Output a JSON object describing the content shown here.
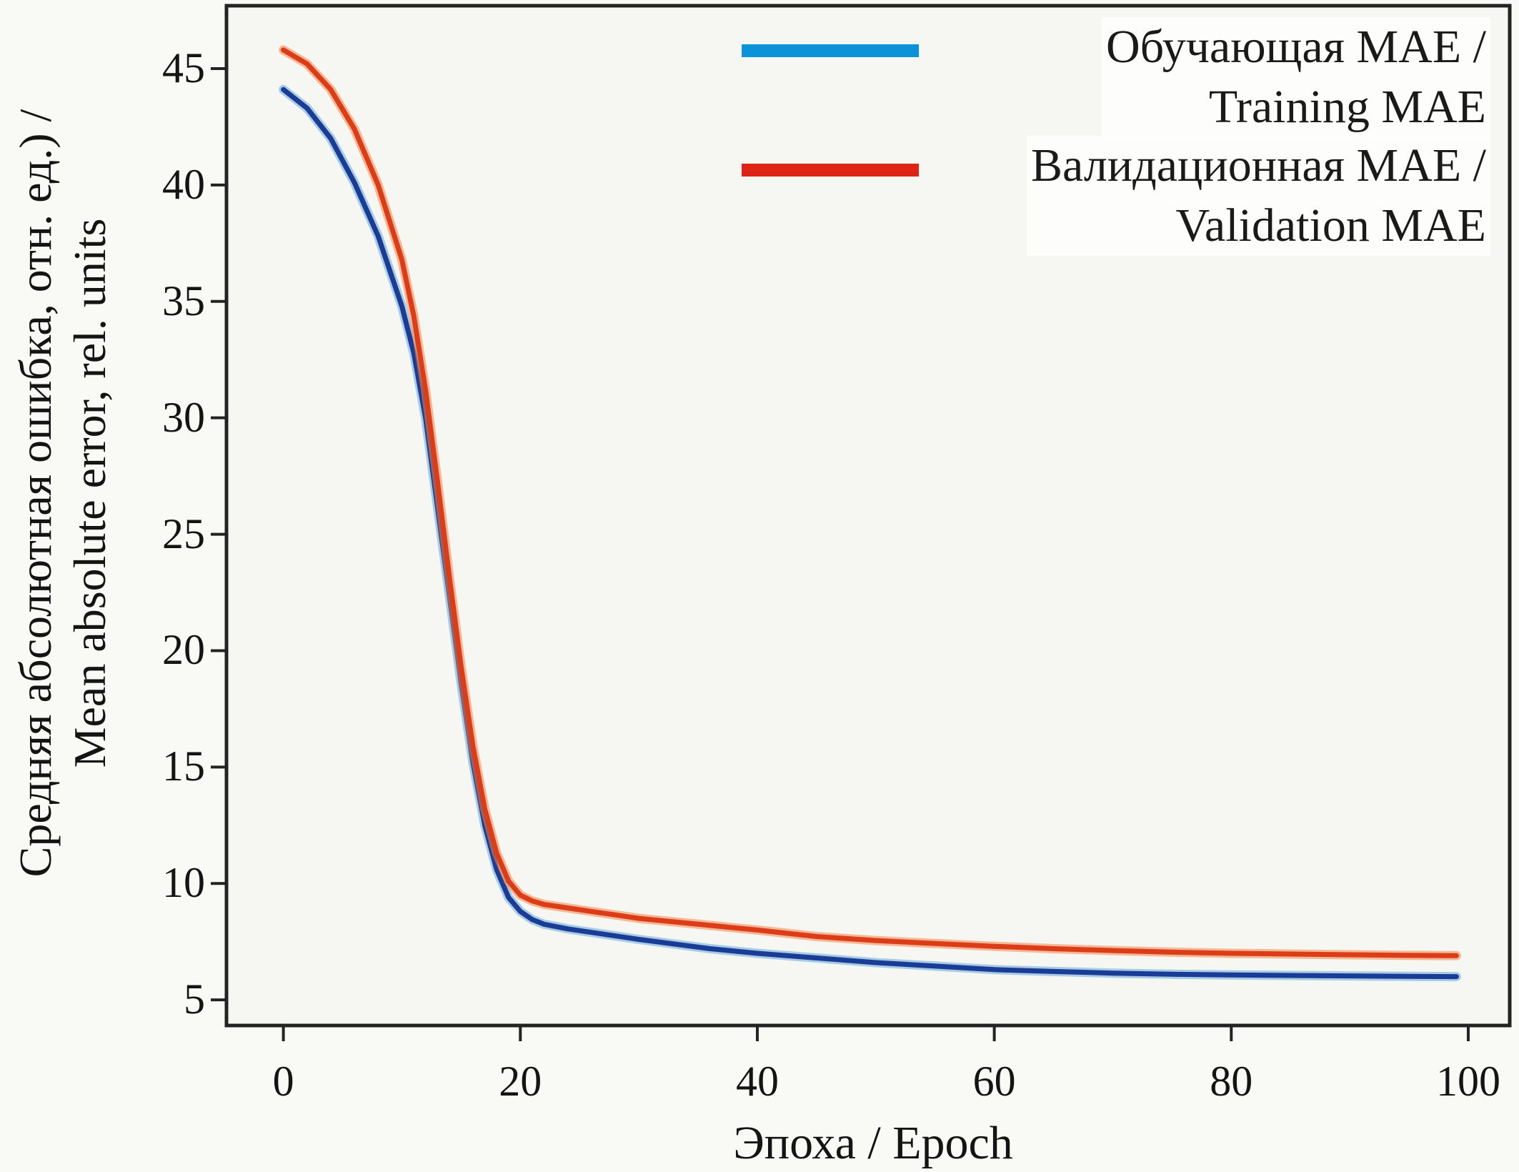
{
  "chart_data": {
    "type": "line",
    "title": "",
    "xlabel": "Эпоха / Epoch",
    "ylabel_line1": "Средняя абсолютная ошибка, отн. ед.) /",
    "ylabel_line2": "Mean absolute error, rel. units",
    "x_ticks": [
      0,
      20,
      40,
      60,
      80,
      100
    ],
    "y_ticks": [
      45,
      40,
      35,
      30,
      25,
      20,
      15,
      10,
      5
    ],
    "xlim": [
      -4.8,
      103.5
    ],
    "ylim": [
      3.9,
      47.7
    ],
    "grid": false,
    "legend_position": "top-right-inside",
    "frame_color": "#232323",
    "background_color": "#f6f6f2",
    "x": [
      0,
      2,
      4,
      6,
      8,
      10,
      11,
      12,
      13,
      14,
      15,
      16,
      17,
      18,
      19,
      20,
      21,
      22,
      24,
      26,
      28,
      30,
      33,
      36,
      40,
      45,
      50,
      55,
      60,
      65,
      70,
      75,
      80,
      85,
      90,
      95,
      99
    ],
    "series": [
      {
        "name": "Обучающая MAE / Training MAE",
        "legend_line1": "Обучающая MAE /",
        "legend_line2": "Training MAE",
        "line_color": "#1a3c96",
        "halo_color": "#66a9d8",
        "swatch_color": "#0a93d8",
        "values": [
          44.1,
          43.3,
          42.0,
          40.1,
          37.8,
          34.8,
          32.8,
          30.0,
          26.2,
          22.4,
          18.6,
          15.2,
          12.5,
          10.6,
          9.4,
          8.8,
          8.45,
          8.25,
          8.05,
          7.9,
          7.75,
          7.6,
          7.4,
          7.2,
          7.0,
          6.8,
          6.6,
          6.45,
          6.3,
          6.22,
          6.15,
          6.1,
          6.07,
          6.05,
          6.03,
          6.01,
          6.0
        ]
      },
      {
        "name": "Валидационная MAE / Validation MAE",
        "legend_line1": "Валидационная MAE /",
        "legend_line2": "Validation MAE",
        "line_color": "#dc3c17",
        "halo_color": "#f0874a",
        "swatch_color": "#de2417",
        "values": [
          45.8,
          45.2,
          44.1,
          42.4,
          40.0,
          36.8,
          34.4,
          31.2,
          27.3,
          23.2,
          19.3,
          15.9,
          13.2,
          11.3,
          10.1,
          9.5,
          9.25,
          9.1,
          8.95,
          8.8,
          8.65,
          8.5,
          8.35,
          8.2,
          8.0,
          7.72,
          7.55,
          7.42,
          7.3,
          7.2,
          7.12,
          7.05,
          7.0,
          6.97,
          6.94,
          6.91,
          6.9
        ]
      }
    ]
  }
}
